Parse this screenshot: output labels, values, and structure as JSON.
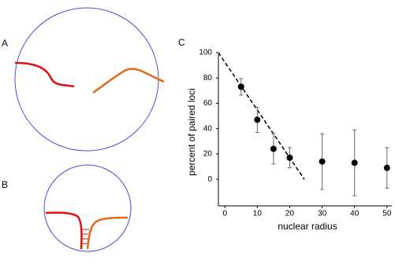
{
  "panels": {
    "labels": [
      "A",
      "B",
      "C"
    ]
  },
  "chart_data": {
    "type": "scatter",
    "x_label": "nuclear radius",
    "y_label": "percent of paired loci",
    "x": [
      5,
      10,
      15,
      20,
      30,
      40,
      50
    ],
    "values": [
      73,
      47,
      24,
      17,
      14,
      13,
      9
    ],
    "errors": [
      6.5,
      10,
      12,
      8,
      22,
      26,
      16
    ],
    "color": "#000000",
    "trend_line": {
      "x": [
        -2,
        24.5
      ],
      "y": [
        100,
        0
      ],
      "color": "#000000"
    },
    "xlim": [
      -2,
      51.5
    ],
    "ylim": [
      -21,
      100
    ],
    "xticks": [
      0,
      10,
      20,
      30,
      40,
      50
    ],
    "yticks": [
      0,
      20,
      40,
      60,
      80,
      100
    ],
    "grid": false
  }
}
